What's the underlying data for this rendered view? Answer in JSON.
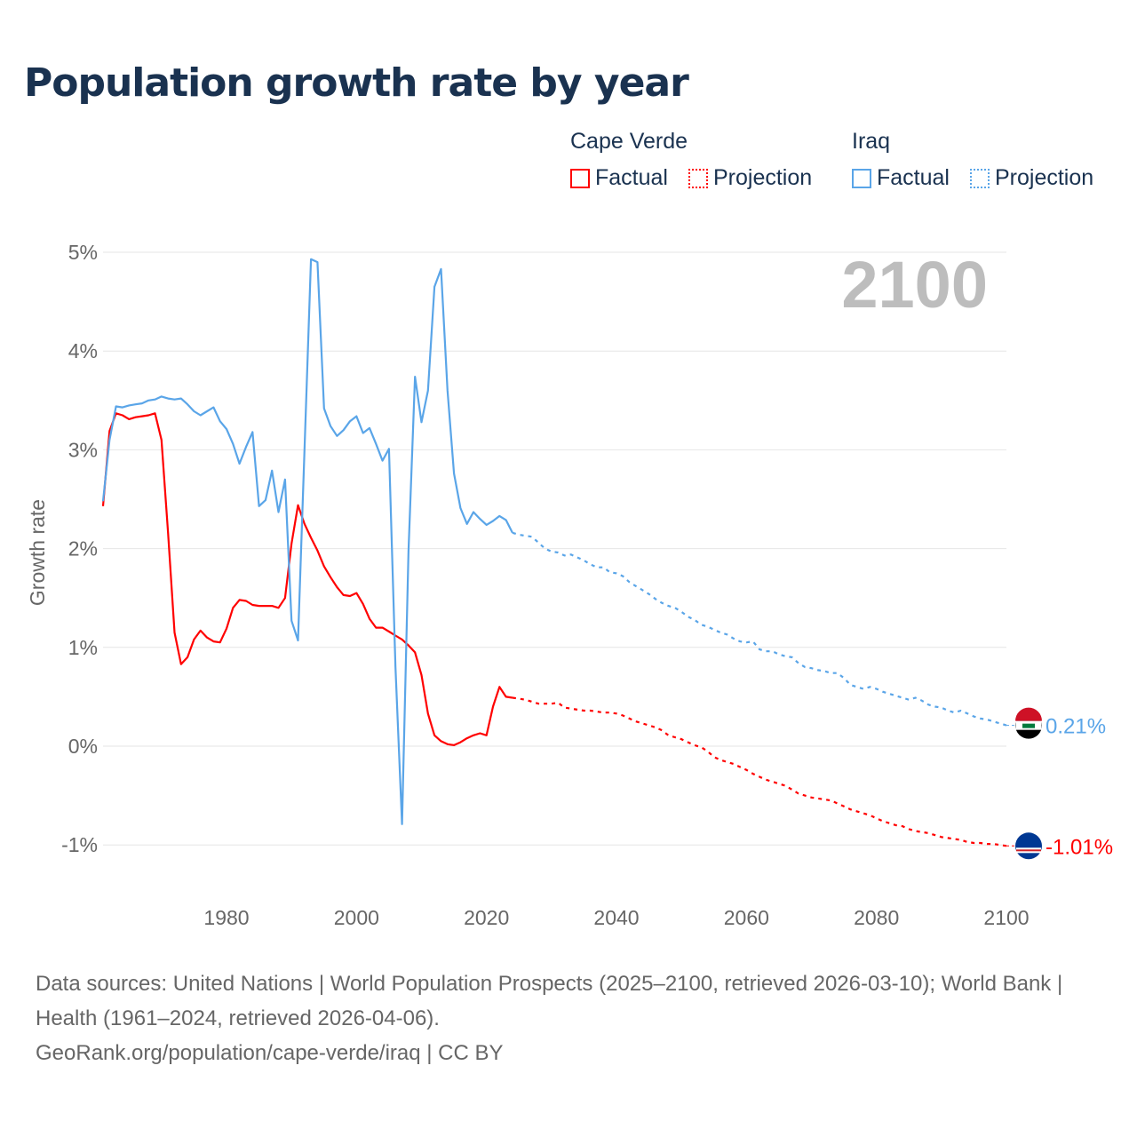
{
  "title": "Population growth rate by year",
  "legend": {
    "groups": [
      {
        "name": "Cape Verde",
        "factual": "Factual",
        "projection": "Projection",
        "color": "#ff0000"
      },
      {
        "name": "Iraq",
        "factual": "Factual",
        "projection": "Projection",
        "color": "#5aa5e8"
      }
    ]
  },
  "current_year_label": "2100",
  "footer": {
    "sources": "Data sources: United Nations | World Population Prospects (2025–2100, retrieved 2026-03-10); World Bank | Health (1961–2024, retrieved 2026-04-06).",
    "link": "GeoRank.org/population/cape-verde/iraq | CC BY"
  },
  "chart_data": {
    "type": "line",
    "title": "Population growth rate by year",
    "xlabel": "",
    "ylabel": "Growth rate",
    "xlim": [
      1961,
      2100
    ],
    "ylim": [
      -1,
      5
    ],
    "x_ticks": [
      "1980",
      "2000",
      "2020",
      "2040",
      "2060",
      "2080",
      "2100"
    ],
    "y_ticks": [
      "-1%",
      "0%",
      "1%",
      "2%",
      "3%",
      "4%",
      "5%"
    ],
    "grid": true,
    "legend_position": "top-right",
    "series": [
      {
        "name": "Cape Verde",
        "color": "#ff0000",
        "end_label": "-1.01%",
        "factual": {
          "start_year": 1961,
          "values": [
            2.43,
            3.19,
            3.37,
            3.35,
            3.31,
            3.33,
            3.34,
            3.35,
            3.37,
            3.1,
            2.16,
            1.15,
            0.83,
            0.9,
            1.08,
            1.17,
            1.1,
            1.06,
            1.05,
            1.19,
            1.4,
            1.48,
            1.47,
            1.43,
            1.42,
            1.42,
            1.42,
            1.4,
            1.5,
            2.05,
            2.44,
            2.25,
            2.11,
            1.98,
            1.82,
            1.71,
            1.61,
            1.53,
            1.52,
            1.55,
            1.44,
            1.29,
            1.2,
            1.2,
            1.16,
            1.12,
            1.08,
            1.02,
            0.95,
            0.72,
            0.33,
            0.11,
            0.05,
            0.02,
            0.01,
            0.04,
            0.08,
            0.11,
            0.13,
            0.11,
            0.4,
            0.6,
            0.5,
            0.49
          ]
        },
        "projection": {
          "start_year": 2024,
          "values": [
            0.49,
            0.48,
            0.47,
            0.45,
            0.43,
            0.43,
            0.43,
            0.44,
            0.39,
            0.38,
            0.37,
            0.36,
            0.36,
            0.35,
            0.34,
            0.34,
            0.33,
            0.31,
            0.28,
            0.25,
            0.23,
            0.21,
            0.19,
            0.16,
            0.11,
            0.09,
            0.07,
            0.04,
            0.01,
            -0.01,
            -0.05,
            -0.11,
            -0.14,
            -0.16,
            -0.18,
            -0.21,
            -0.24,
            -0.28,
            -0.31,
            -0.34,
            -0.36,
            -0.38,
            -0.4,
            -0.44,
            -0.48,
            -0.5,
            -0.52,
            -0.53,
            -0.54,
            -0.55,
            -0.58,
            -0.61,
            -0.64,
            -0.66,
            -0.68,
            -0.7,
            -0.73,
            -0.76,
            -0.78,
            -0.8,
            -0.81,
            -0.84,
            -0.86,
            -0.87,
            -0.88,
            -0.9,
            -0.92,
            -0.93,
            -0.94,
            -0.95,
            -0.97,
            -0.98,
            -0.98,
            -0.99,
            -0.99,
            -1.0,
            -1.01
          ]
        }
      },
      {
        "name": "Iraq",
        "color": "#5aa5e8",
        "end_label": "0.21%",
        "factual": {
          "start_year": 1961,
          "values": [
            2.48,
            3.1,
            3.44,
            3.43,
            3.45,
            3.46,
            3.47,
            3.5,
            3.51,
            3.54,
            3.52,
            3.51,
            3.52,
            3.46,
            3.39,
            3.35,
            3.39,
            3.43,
            3.29,
            3.21,
            3.06,
            2.86,
            3.03,
            3.18,
            2.43,
            2.49,
            2.79,
            2.37,
            2.7,
            1.27,
            1.07,
            3.0,
            4.93,
            4.9,
            3.42,
            3.24,
            3.14,
            3.2,
            3.29,
            3.34,
            3.17,
            3.22,
            3.06,
            2.89,
            3.01,
            0.8,
            -0.79,
            1.98,
            3.74,
            3.28,
            3.6,
            4.65,
            4.83,
            3.6,
            2.76,
            2.41,
            2.25,
            2.37,
            2.3,
            2.24,
            2.28,
            2.33,
            2.29,
            2.16
          ]
        },
        "projection": {
          "start_year": 2024,
          "values": [
            2.16,
            2.14,
            2.13,
            2.12,
            2.06,
            2.0,
            1.97,
            1.96,
            1.93,
            1.94,
            1.91,
            1.88,
            1.84,
            1.81,
            1.81,
            1.76,
            1.75,
            1.72,
            1.66,
            1.62,
            1.58,
            1.54,
            1.49,
            1.45,
            1.42,
            1.4,
            1.36,
            1.31,
            1.28,
            1.23,
            1.21,
            1.18,
            1.15,
            1.13,
            1.09,
            1.06,
            1.05,
            1.06,
            0.98,
            0.96,
            0.96,
            0.93,
            0.91,
            0.9,
            0.84,
            0.8,
            0.79,
            0.77,
            0.76,
            0.74,
            0.74,
            0.69,
            0.62,
            0.6,
            0.58,
            0.6,
            0.58,
            0.55,
            0.53,
            0.51,
            0.49,
            0.47,
            0.49,
            0.46,
            0.42,
            0.4,
            0.39,
            0.36,
            0.34,
            0.36,
            0.33,
            0.3,
            0.28,
            0.27,
            0.25,
            0.23,
            0.21
          ]
        }
      }
    ]
  }
}
